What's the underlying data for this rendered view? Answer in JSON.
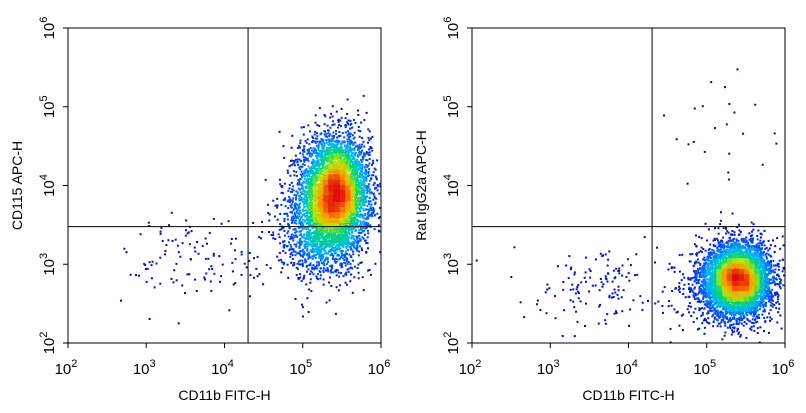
{
  "chart_data": [
    {
      "type": "scatter",
      "subtype": "density-dot-plot",
      "xlabel": "CD11b FITC-H",
      "ylabel": "CD115 APC-H",
      "xscale": "log",
      "yscale": "log",
      "xlim": [
        100,
        1000000
      ],
      "ylim": [
        100,
        1000000
      ],
      "x_ticks": [
        {
          "base": "10",
          "exp": "2"
        },
        {
          "base": "10",
          "exp": "3"
        },
        {
          "base": "10",
          "exp": "4"
        },
        {
          "base": "10",
          "exp": "5"
        },
        {
          "base": "10",
          "exp": "6"
        }
      ],
      "y_ticks": [
        {
          "base": "10",
          "exp": "2"
        },
        {
          "base": "10",
          "exp": "3"
        },
        {
          "base": "10",
          "exp": "4"
        },
        {
          "base": "10",
          "exp": "5"
        },
        {
          "base": "10",
          "exp": "6"
        }
      ],
      "quadrant_gate": {
        "x": 20000,
        "y": 3000
      },
      "populations": [
        {
          "name": "main",
          "cx": 260000,
          "cy": 8000,
          "sx": 0.22,
          "sy": 0.36,
          "n": 5000
        },
        {
          "name": "tail",
          "cx": 150000,
          "cy": 2500,
          "sx": 0.25,
          "sy": 0.3,
          "n": 900
        },
        {
          "name": "scatter",
          "cx": 6000,
          "cy": 1200,
          "sx": 0.5,
          "sy": 0.3,
          "n": 120
        }
      ]
    },
    {
      "type": "scatter",
      "subtype": "density-dot-plot",
      "xlabel": "CD11b FITC-H",
      "ylabel": "Rat IgG2a APC-H",
      "xscale": "log",
      "yscale": "log",
      "xlim": [
        100,
        1000000
      ],
      "ylim": [
        100,
        1000000
      ],
      "x_ticks": [
        {
          "base": "10",
          "exp": "2"
        },
        {
          "base": "10",
          "exp": "3"
        },
        {
          "base": "10",
          "exp": "4"
        },
        {
          "base": "10",
          "exp": "5"
        },
        {
          "base": "10",
          "exp": "6"
        }
      ],
      "y_ticks": [
        {
          "base": "10",
          "exp": "2"
        },
        {
          "base": "10",
          "exp": "3"
        },
        {
          "base": "10",
          "exp": "4"
        },
        {
          "base": "10",
          "exp": "5"
        },
        {
          "base": "10",
          "exp": "6"
        }
      ],
      "quadrant_gate": {
        "x": 20000,
        "y": 3000
      },
      "populations": [
        {
          "name": "main",
          "cx": 260000,
          "cy": 650,
          "sx": 0.2,
          "sy": 0.22,
          "n": 5000
        },
        {
          "name": "tail",
          "cx": 150000,
          "cy": 500,
          "sx": 0.25,
          "sy": 0.25,
          "n": 700
        },
        {
          "name": "scatter",
          "cx": 5000,
          "cy": 500,
          "sx": 0.45,
          "sy": 0.25,
          "n": 140
        },
        {
          "name": "high",
          "cx": 200000,
          "cy": 40000,
          "sx": 0.4,
          "sy": 0.5,
          "n": 25
        }
      ]
    }
  ]
}
